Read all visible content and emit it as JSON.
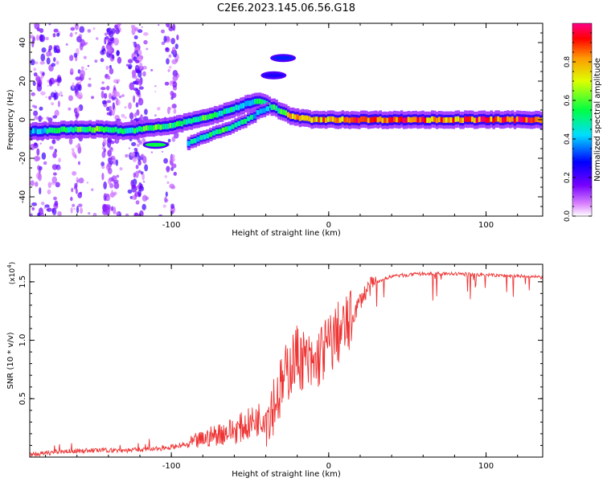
{
  "chart_data": [
    {
      "type": "heatmap",
      "title": "C2E6.2023.145.06.56.G18",
      "xlabel": "Height of straight line (km)",
      "ylabel": "Frequency (Hz)",
      "xlim": [
        -190,
        136
      ],
      "ylim": [
        -50,
        50
      ],
      "xticks": [
        -100,
        0,
        100
      ],
      "xtick_labels": [
        "-100",
        "0",
        "100"
      ],
      "yticks": [
        -40,
        -20,
        0,
        20,
        40
      ],
      "ytick_labels": [
        "-40",
        "-20",
        "0",
        "20",
        "40"
      ],
      "colorbar": {
        "label": "Normalized spectral amplitude",
        "range": [
          0,
          1
        ],
        "ticks": [
          0.0,
          0.2,
          0.4,
          0.6,
          0.8
        ],
        "tick_labels": [
          "0.0",
          "0.2",
          "0.4",
          "0.6",
          "0.8"
        ],
        "colormap": "rainbow (white-purple-blue-cyan-green-yellow-red-magenta)"
      },
      "ridge": {
        "x": [
          -190,
          -160,
          -140,
          -130,
          -120,
          -110,
          -100,
          -90,
          -80,
          -70,
          -60,
          -50,
          -45,
          -40,
          -35,
          -30,
          -25,
          -20,
          -10,
          0,
          10,
          20,
          40,
          60,
          80,
          100,
          120,
          136
        ],
        "y": [
          -6,
          -5,
          -5,
          -6,
          -5,
          -4,
          -3,
          -1,
          1,
          3,
          6,
          9,
          10,
          8,
          6,
          4,
          2,
          1,
          0,
          0,
          0,
          0,
          0,
          0,
          0,
          0,
          0,
          0
        ],
        "amplitude": [
          0.45,
          0.6,
          0.65,
          0.55,
          0.6,
          0.65,
          0.6,
          0.55,
          0.6,
          0.55,
          0.55,
          0.5,
          0.55,
          0.65,
          0.6,
          0.65,
          0.8,
          0.85,
          0.85,
          0.9,
          0.95,
          0.95,
          0.95,
          0.95,
          0.95,
          0.95,
          0.95,
          0.95
        ]
      },
      "secondary_branch": {
        "x": [
          -90,
          -80,
          -70,
          -60,
          -50,
          -45,
          -40
        ],
        "y": [
          -12,
          -9,
          -6,
          -3,
          1,
          4,
          6
        ],
        "amplitude": [
          0.5,
          0.55,
          0.6,
          0.55,
          0.5,
          0.45,
          0.45
        ]
      },
      "isolated_blobs": [
        {
          "x": -110,
          "y": -13,
          "amplitude": 0.55
        },
        {
          "x": -29,
          "y": 32,
          "amplitude": 0.3
        },
        {
          "x": -35,
          "y": 23,
          "amplitude": 0.25
        }
      ],
      "noise_columns_x": [
        -185,
        -175,
        -160,
        -140,
        -137,
        -123,
        -120,
        -100
      ]
    },
    {
      "type": "line",
      "xlabel": "Height of straight line (km)",
      "ylabel": "SNR (10 * v/v)",
      "y_scale_label": "(x10",
      "y_scale_exponent": "4",
      "xlim": [
        -190,
        136
      ],
      "ylim": [
        0,
        1.65
      ],
      "xticks": [
        -100,
        0,
        100
      ],
      "xtick_labels": [
        "-100",
        "0",
        "100"
      ],
      "yticks": [
        0.5,
        1.0,
        1.5
      ],
      "ytick_labels": [
        "0.5",
        "1.0",
        "1.5"
      ],
      "color": "#ee3333",
      "series": [
        {
          "name": "SNR",
          "x": [
            -190,
            -170,
            -150,
            -130,
            -110,
            -100,
            -90,
            -80,
            -70,
            -60,
            -50,
            -40,
            -35,
            -30,
            -25,
            -20,
            -15,
            -10,
            -5,
            0,
            5,
            10,
            15,
            20,
            25,
            30,
            40,
            60,
            80,
            100,
            120,
            136
          ],
          "y": [
            0.02,
            0.05,
            0.06,
            0.06,
            0.07,
            0.09,
            0.11,
            0.16,
            0.21,
            0.24,
            0.3,
            0.38,
            0.5,
            0.62,
            0.8,
            0.9,
            0.85,
            0.78,
            0.92,
            0.98,
            1.08,
            1.12,
            1.2,
            1.35,
            1.45,
            1.5,
            1.55,
            1.57,
            1.57,
            1.56,
            1.55,
            1.54
          ]
        }
      ]
    }
  ]
}
